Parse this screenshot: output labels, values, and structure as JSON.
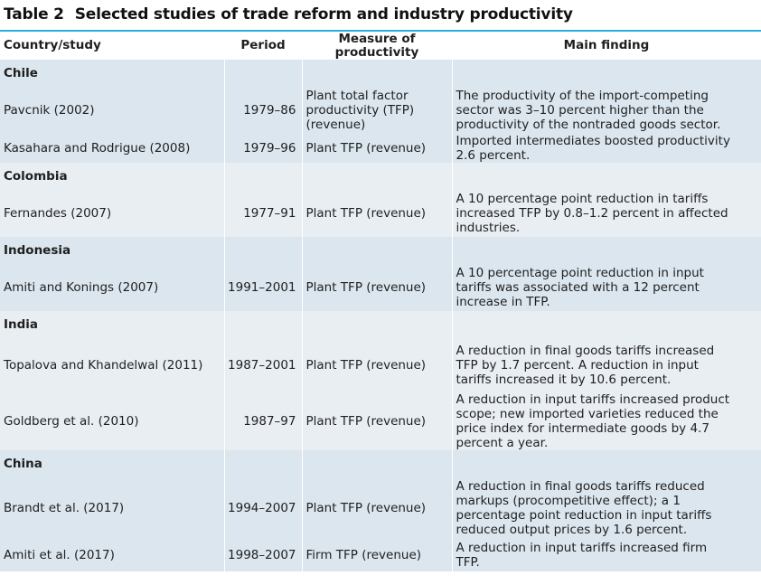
{
  "title": {
    "number": "Table 2",
    "text": "Selected studies of trade reform and industry productivity"
  },
  "headers": {
    "country": "Country/study",
    "period": "Period",
    "measure_line1": "Measure of",
    "measure_line2": "productivity",
    "finding": "Main finding"
  },
  "groups": [
    {
      "country": "Chile",
      "studies": [
        {
          "study": "Pavcnik (2002)",
          "period": "1979–86",
          "measure": [
            "Plant total factor",
            "productivity (TFP)",
            "(revenue)"
          ],
          "finding": [
            "The productivity of the import-competing",
            "sector was 3–10 percent higher than the",
            "productivity of the nontraded goods sector."
          ]
        },
        {
          "study": "Kasahara and Rodrigue (2008)",
          "period": "1979–96",
          "measure": [
            "Plant TFP (revenue)"
          ],
          "finding": [
            "Imported intermediates boosted productivity",
            "2.6 percent."
          ]
        }
      ]
    },
    {
      "country": "Colombia",
      "studies": [
        {
          "study": "Fernandes (2007)",
          "period": "1977–91",
          "measure": [
            "Plant TFP (revenue)"
          ],
          "finding": [
            "A 10 percentage point reduction in tariffs",
            "increased TFP by 0.8–1.2 percent in affected",
            "industries."
          ]
        }
      ]
    },
    {
      "country": "Indonesia",
      "studies": [
        {
          "study": "Amiti and Konings (2007)",
          "period": "1991–2001",
          "measure": [
            "Plant TFP (revenue)"
          ],
          "finding": [
            "A 10 percentage point reduction in input",
            "tariffs was associated with a 12 percent",
            "increase in TFP."
          ]
        }
      ]
    },
    {
      "country": "India",
      "studies": [
        {
          "study": "Topalova and Khandelwal (2011)",
          "period": "1987–2001",
          "measure": [
            "Plant TFP (revenue)"
          ],
          "finding": [
            "A reduction in final goods tariffs increased",
            "TFP by 1.7 percent. A reduction in input",
            "tariffs increased it by 10.6 percent."
          ]
        },
        {
          "study": "Goldberg et al. (2010)",
          "period": "1987–97",
          "measure": [
            "Plant TFP (revenue)"
          ],
          "finding": [
            "A reduction in input tariffs increased product",
            "scope; new imported varieties reduced the",
            "price index for intermediate goods by 4.7",
            "percent a year."
          ]
        }
      ]
    },
    {
      "country": "China",
      "studies": [
        {
          "study": "Brandt et al. (2017)",
          "period": "1994–2007",
          "measure": [
            "Plant TFP (revenue)"
          ],
          "finding": [
            "A reduction in final goods tariffs reduced",
            "markups (procompetitive effect); a 1",
            "percentage point reduction in input tariffs",
            "reduced output prices by 1.6 percent."
          ]
        },
        {
          "study": "Amiti et al. (2017)",
          "period": "1998–2007",
          "measure": [
            "Firm TFP (revenue)"
          ],
          "finding": [
            "A reduction in input tariffs increased firm",
            "TFP."
          ]
        }
      ]
    }
  ]
}
